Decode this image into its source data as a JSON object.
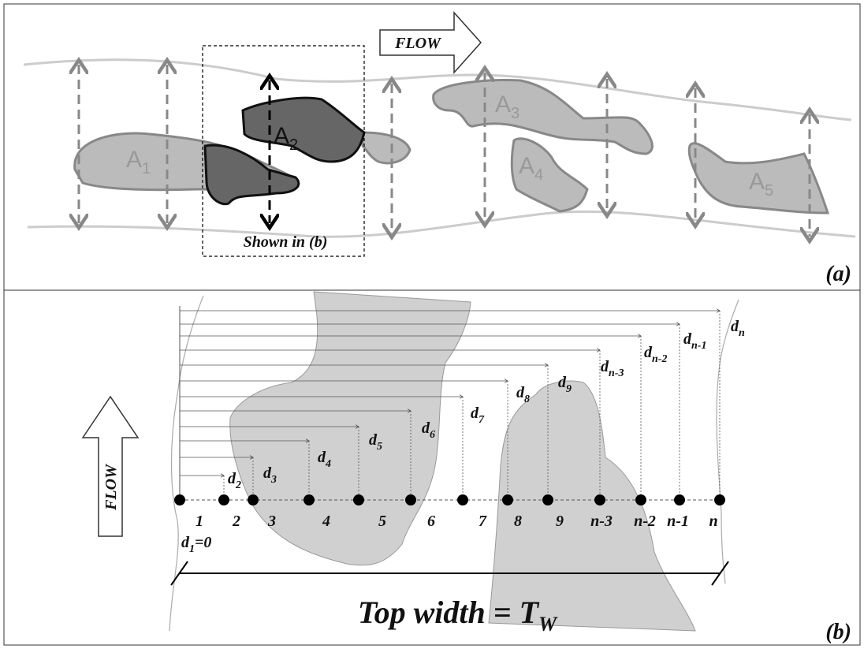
{
  "panel_a": {
    "flow": "FLOW",
    "areas": [
      {
        "base": "A",
        "sub": "1"
      },
      {
        "base": "A",
        "sub": "2"
      },
      {
        "base": "A",
        "sub": "3"
      },
      {
        "base": "A",
        "sub": "4"
      },
      {
        "base": "A",
        "sub": "5"
      }
    ],
    "inset_label": "Shown in (b)",
    "panel_label": "(a)"
  },
  "panel_b": {
    "flow": "FLOW",
    "points": [
      "1",
      "2",
      "3",
      "4",
      "5",
      "6",
      "7",
      "8",
      "9",
      "n-3",
      "n-2",
      "n-1",
      "n"
    ],
    "distances": [
      {
        "base": "d",
        "sub": "2"
      },
      {
        "base": "d",
        "sub": "3"
      },
      {
        "base": "d",
        "sub": "4"
      },
      {
        "base": "d",
        "sub": "5"
      },
      {
        "base": "d",
        "sub": "6"
      },
      {
        "base": "d",
        "sub": "7"
      },
      {
        "base": "d",
        "sub": "8"
      },
      {
        "base": "d",
        "sub": "9"
      },
      {
        "base": "d",
        "sub": "n-3"
      },
      {
        "base": "d",
        "sub": "n-2"
      },
      {
        "base": "d",
        "sub": "n-1"
      },
      {
        "base": "d",
        "sub": "n"
      }
    ],
    "first_distance": {
      "base": "d",
      "sub": "1",
      "suffix": "=0"
    },
    "top_width": {
      "base": "Top width = T",
      "sub": "W"
    },
    "panel_label": "(b)"
  }
}
